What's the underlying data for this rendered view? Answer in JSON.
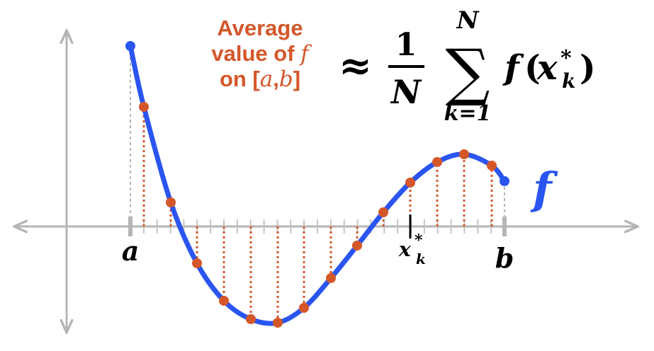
{
  "caption": {
    "line1": "Average",
    "line2_prefix": "value of ",
    "line2_var": "f",
    "line3_prefix": "on [",
    "line3_a": "a",
    "line3_sep": ",",
    "line3_b": "b",
    "line3_suffix": "]"
  },
  "formula": {
    "approx": "≈",
    "numerator": "1",
    "denominator": "N",
    "sum_symbol": "∑",
    "upper_limit": "N",
    "lower_limit": "k=1",
    "function": "f",
    "open_paren": "(",
    "arg_base": "x",
    "arg_sup": "*",
    "arg_sub": "k",
    "close_paren": ")"
  },
  "labels": {
    "a": "a",
    "b": "b",
    "sample": "x",
    "sample_sup": "*",
    "sample_sub": "k",
    "curve": "f"
  },
  "colors": {
    "curve": "#2a55f0",
    "points": "#d4572a",
    "axis": "#b5b5b5",
    "text": "#000000",
    "accent_text": "#d4572a"
  }
}
